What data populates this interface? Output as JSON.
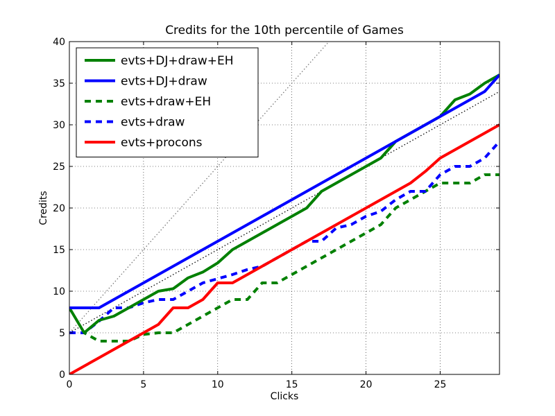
{
  "chart_data": {
    "type": "line",
    "title": "Credits for the 10th percentile of Games",
    "xlabel": "Clicks",
    "ylabel": "Credits",
    "xlim": [
      0,
      29
    ],
    "ylim": [
      0,
      40
    ],
    "xticks": [
      0,
      5,
      10,
      15,
      20,
      25
    ],
    "yticks": [
      0,
      5,
      10,
      15,
      20,
      25,
      30,
      35,
      40
    ],
    "grid": true,
    "legend_position": "top-left",
    "series": [
      {
        "name": "evts+DJ+draw+EH",
        "color": "#008000",
        "style": "solid",
        "x": [
          0,
          1,
          2,
          3,
          4,
          5,
          6,
          7,
          8,
          9,
          10,
          11,
          12,
          13,
          14,
          15,
          16,
          17,
          18,
          19,
          20,
          21,
          22,
          23,
          24,
          25,
          26,
          27,
          28,
          29
        ],
        "y": [
          8,
          5,
          6.5,
          7,
          8,
          9,
          10,
          10.3,
          11.6,
          12.3,
          13.4,
          15,
          16,
          17,
          18,
          19,
          20,
          22,
          23,
          24,
          25,
          26,
          28,
          29,
          30,
          31,
          33,
          33.7,
          35,
          36
        ]
      },
      {
        "name": "evts+DJ+draw",
        "color": "#0000ff",
        "style": "solid",
        "x": [
          0,
          1,
          2,
          3,
          4,
          5,
          6,
          7,
          8,
          9,
          10,
          11,
          12,
          13,
          14,
          15,
          16,
          17,
          18,
          19,
          20,
          21,
          22,
          23,
          24,
          25,
          26,
          27,
          28,
          29
        ],
        "y": [
          8,
          8,
          8,
          9,
          10,
          11,
          12,
          13,
          14,
          15,
          16,
          17,
          18,
          19,
          20,
          21,
          22,
          23,
          24,
          25,
          26,
          27,
          28,
          29,
          30,
          31,
          32,
          33,
          34,
          36
        ]
      },
      {
        "name": "evts+draw+EH",
        "color": "#008000",
        "style": "dashed",
        "x": [
          0,
          1,
          2,
          3,
          4,
          5,
          6,
          7,
          8,
          9,
          10,
          11,
          12,
          13,
          14,
          15,
          16,
          17,
          18,
          19,
          20,
          21,
          22,
          23,
          24,
          25,
          26,
          27,
          28,
          29
        ],
        "y": [
          5,
          5,
          4,
          4,
          4,
          4.8,
          5,
          5,
          6,
          7,
          8,
          9,
          9,
          11,
          11,
          12,
          13,
          14,
          15,
          16,
          17,
          18,
          20,
          21,
          22,
          23,
          23,
          23,
          24,
          24
        ]
      },
      {
        "name": "evts+draw",
        "color": "#0000ff",
        "style": "dashed",
        "x": [
          0,
          1,
          2,
          3,
          4,
          5,
          6,
          7,
          8,
          9,
          10,
          11,
          12,
          13,
          14,
          15,
          16,
          17,
          18,
          19,
          20,
          21,
          22,
          23,
          24,
          25,
          26,
          27,
          28,
          29
        ],
        "y": [
          5,
          5,
          6.4,
          8,
          8,
          8.6,
          9,
          9,
          10,
          11,
          11.5,
          12,
          12.6,
          13,
          14,
          15,
          16,
          16,
          17.6,
          18,
          19,
          19.6,
          21,
          22,
          22,
          24,
          25,
          25,
          26,
          28
        ]
      },
      {
        "name": "evts+procons",
        "color": "#ff0000",
        "style": "solid",
        "x": [
          0,
          1,
          2,
          3,
          4,
          5,
          6,
          7,
          8,
          9,
          10,
          11,
          12,
          13,
          14,
          15,
          16,
          17,
          18,
          19,
          20,
          21,
          22,
          23,
          24,
          25,
          26,
          27,
          28,
          29
        ],
        "y": [
          0,
          1,
          2,
          3,
          4,
          5,
          6,
          8,
          8,
          9,
          11,
          11,
          12,
          13,
          14,
          15,
          16,
          17,
          18,
          19,
          20,
          21,
          22,
          23,
          24.4,
          26,
          27,
          28,
          29,
          30
        ]
      }
    ],
    "reference_lines": [
      {
        "color": "#777777",
        "style": "dotted",
        "x": [
          0,
          17.5
        ],
        "y": [
          5,
          40
        ]
      },
      {
        "color": "#000000",
        "style": "dotted",
        "x": [
          0,
          29
        ],
        "y": [
          5,
          34
        ]
      }
    ]
  }
}
